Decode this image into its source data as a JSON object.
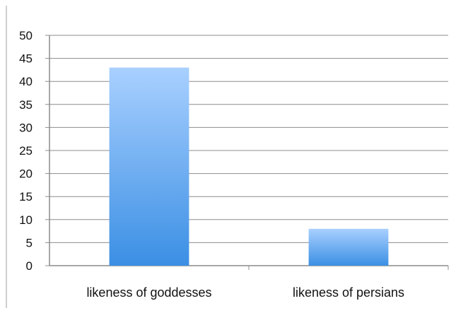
{
  "chart_data": {
    "type": "bar",
    "title": "",
    "xlabel": "",
    "ylabel": "",
    "categories": [
      "likeness of goddesses",
      "likeness of persians"
    ],
    "values": [
      43,
      8
    ],
    "ylim": [
      0,
      50
    ],
    "yticks": [
      "0",
      "5",
      "10",
      "15",
      "20",
      "25",
      "30",
      "35",
      "40",
      "45",
      "50"
    ],
    "grid": true,
    "legend": "none",
    "colors": {
      "bar_top": "#a9d0ff",
      "bar_bottom": "#3b8fe4",
      "grid": "#8c8c8c",
      "axis": "#8c8c8c",
      "text": "#111111"
    }
  }
}
